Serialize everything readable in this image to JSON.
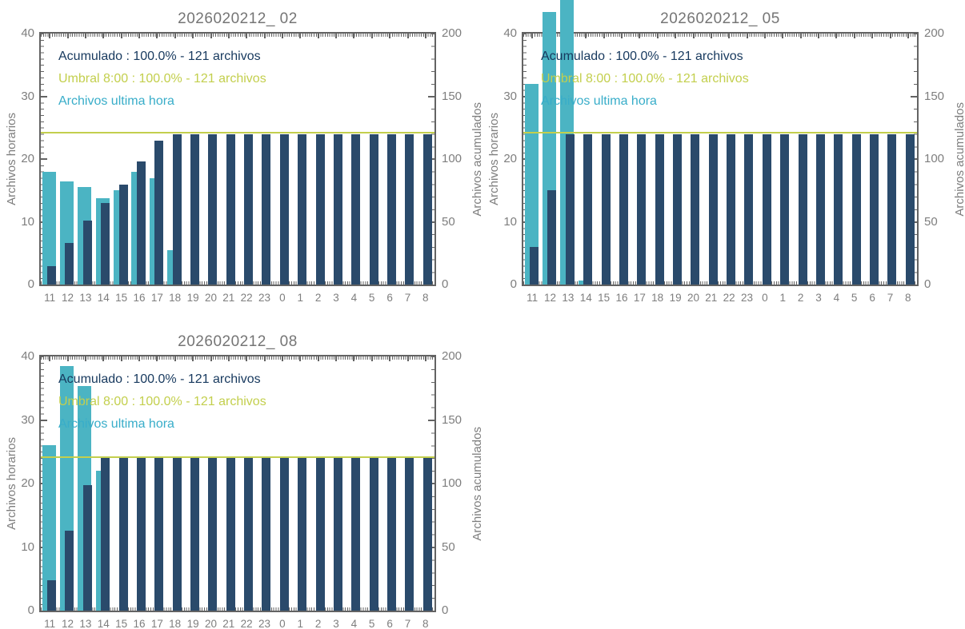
{
  "colors": {
    "navy_bar": "#2a4a6b",
    "navy_text": "#17395e",
    "teal_bar": "#4bb4c3",
    "teal_text": "#38adc9",
    "umbral": "#c3cf4d",
    "axis": "#636363",
    "tick_label": "#7e7e7e",
    "title": "#757575",
    "background": "#ffffff"
  },
  "shared": {
    "left_label": "Archivos horarios",
    "right_label": "Archivos acumulados",
    "left_ticks": [
      "0",
      "10",
      "20",
      "30",
      "40"
    ],
    "right_ticks": [
      "0",
      "50",
      "100",
      "150",
      "200"
    ]
  },
  "chart_data": [
    {
      "type": "bar",
      "title": "2026020212_ 02",
      "ylabel_left": "Archivos horarios",
      "ylabel_right": "Archivos acumulados",
      "ylim_left": [
        0,
        40
      ],
      "ylim_right": [
        0,
        200
      ],
      "grid": false,
      "legend_position": "top-left-inside",
      "categories": [
        "11",
        "12",
        "13",
        "14",
        "15",
        "16",
        "17",
        "18",
        "19",
        "20",
        "21",
        "22",
        "23",
        "0",
        "1",
        "2",
        "3",
        "4",
        "5",
        "6",
        "7",
        "8"
      ],
      "series": [
        {
          "name": "Archivos horarios",
          "color_key": "navy",
          "values": [
            3,
            6.6,
            10.2,
            13,
            15.9,
            19.6,
            23,
            24,
            24,
            24,
            24,
            24,
            24,
            24,
            24,
            24,
            24,
            24,
            24,
            24,
            24,
            24
          ]
        },
        {
          "name": "Archivos ultima hora",
          "color_key": "teal",
          "values": [
            18,
            16.5,
            15.5,
            13.8,
            15,
            18,
            17,
            5.5,
            null,
            null,
            null,
            null,
            null,
            null,
            null,
            null,
            null,
            null,
            null,
            null,
            null,
            null
          ]
        }
      ],
      "threshold": {
        "name": "Umbral 8:00",
        "left_axis_value": 24.2,
        "right_axis_value": 121
      },
      "legend": {
        "acumulado": "Acumulado : 100.0% - 121 archivos",
        "umbral": "Umbral 8:00 : 100.0% - 121 archivos",
        "ultima": "Archivos ultima hora"
      }
    },
    {
      "type": "bar",
      "title": "2026020212_ 05",
      "ylabel_left": "Archivos horarios",
      "ylabel_right": "Archivos acumulados",
      "ylim_left": [
        0,
        40
      ],
      "ylim_right": [
        0,
        200
      ],
      "grid": false,
      "legend_position": "top-left-inside",
      "categories": [
        "11",
        "12",
        "13",
        "14",
        "15",
        "16",
        "17",
        "18",
        "19",
        "20",
        "21",
        "22",
        "23",
        "0",
        "1",
        "2",
        "3",
        "4",
        "5",
        "6",
        "7",
        "8"
      ],
      "series": [
        {
          "name": "Archivos horarios",
          "color_key": "navy",
          "values": [
            6,
            15,
            24,
            24,
            24,
            24,
            24,
            24,
            24,
            24,
            24,
            24,
            24,
            24,
            24,
            24,
            24,
            24,
            24,
            24,
            24,
            24
          ]
        },
        {
          "name": "Archivos ultima hora",
          "color_key": "teal",
          "values": [
            32,
            43.5,
            48,
            0.6,
            null,
            null,
            null,
            null,
            null,
            null,
            null,
            null,
            null,
            null,
            null,
            null,
            null,
            null,
            null,
            null,
            null,
            null
          ]
        }
      ],
      "threshold": {
        "name": "Umbral 8:00",
        "left_axis_value": 24.2,
        "right_axis_value": 121
      },
      "legend": {
        "acumulado": "Acumulado : 100.0% - 121 archivos",
        "umbral": "Umbral 8:00 : 100.0% - 121 archivos",
        "ultima": "Archivos ultima hora"
      }
    },
    {
      "type": "bar",
      "title": "2026020212_ 08",
      "ylabel_left": "Archivos horarios",
      "ylabel_right": "Archivos acumulados",
      "ylim_left": [
        0,
        40
      ],
      "ylim_right": [
        0,
        200
      ],
      "grid": false,
      "legend_position": "top-left-inside",
      "categories": [
        "11",
        "12",
        "13",
        "14",
        "15",
        "16",
        "17",
        "18",
        "19",
        "20",
        "21",
        "22",
        "23",
        "0",
        "1",
        "2",
        "3",
        "4",
        "5",
        "6",
        "7",
        "8"
      ],
      "series": [
        {
          "name": "Archivos horarios",
          "color_key": "navy",
          "values": [
            4.8,
            12.6,
            19.7,
            24,
            24,
            24,
            24,
            24,
            24,
            24,
            24,
            24,
            24,
            24,
            24,
            24,
            24,
            24,
            24,
            24,
            24,
            24
          ]
        },
        {
          "name": "Archivos ultima hora",
          "color_key": "teal",
          "values": [
            26,
            38.5,
            35.3,
            22,
            null,
            null,
            null,
            null,
            null,
            null,
            null,
            null,
            null,
            null,
            null,
            null,
            null,
            null,
            null,
            null,
            null,
            null
          ]
        }
      ],
      "threshold": {
        "name": "Umbral 8:00",
        "left_axis_value": 24.2,
        "right_axis_value": 121
      },
      "legend": {
        "acumulado": "Acumulado : 100.0% - 121 archivos",
        "umbral": "Umbral 8:00 : 100.0% - 121 archivos",
        "ultima": "Archivos ultima hora"
      }
    }
  ]
}
